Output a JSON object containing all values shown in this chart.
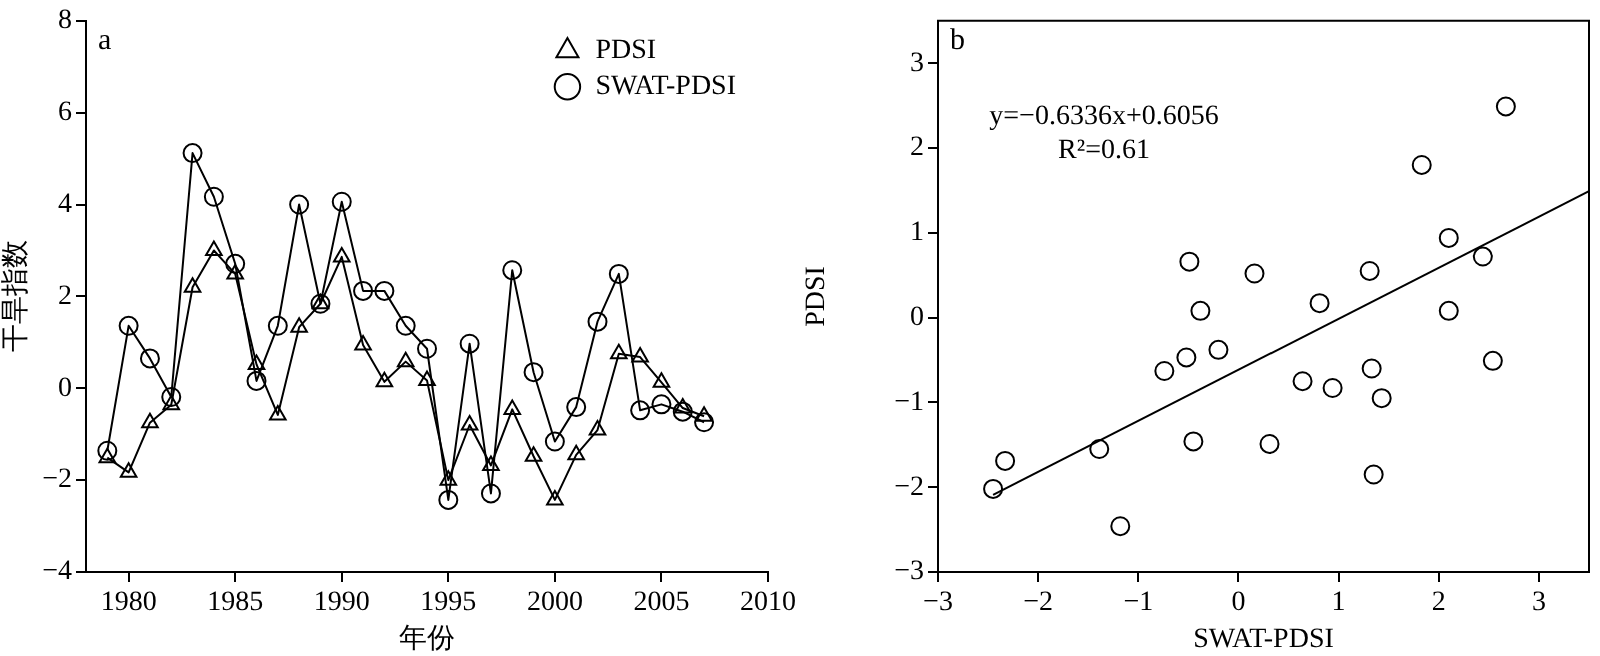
{
  "chart_data": [
    {
      "type": "line",
      "xlabel": "年份",
      "ylabel": "干旱指数",
      "annotations": [
        "a"
      ],
      "legend": "top right",
      "grid": false,
      "x": [
        1979,
        1980,
        1981,
        1982,
        1983,
        1984,
        1985,
        1986,
        1987,
        1988,
        1989,
        1990,
        1991,
        1992,
        1993,
        1994,
        1995,
        1996,
        1997,
        1998,
        1999,
        2000,
        2001,
        2002,
        2003,
        2004,
        2005,
        2006,
        2007
      ],
      "xlim": [
        1978,
        2010
      ],
      "xticks": [
        1980,
        1985,
        1990,
        1995,
        2000,
        2005,
        2010
      ],
      "ylim": [
        -4,
        8
      ],
      "yticks": [
        -4,
        -2,
        0,
        2,
        4,
        6,
        8
      ],
      "series": [
        {
          "name": "PDSI",
          "color": "#000000",
          "marker": "triangle",
          "values": [
            -1.51,
            -1.83,
            -0.75,
            -0.36,
            2.2,
            3.0,
            2.49,
            0.52,
            -0.58,
            1.33,
            1.84,
            2.86,
            0.94,
            0.14,
            0.58,
            0.17,
            -2.0,
            -0.8,
            -1.68,
            -0.46,
            -1.48,
            -2.43,
            -1.45,
            -0.91,
            0.75,
            0.68,
            0.13,
            -0.43,
            -0.61
          ]
        },
        {
          "name": "SWAT-PDSI",
          "color": "#000000",
          "marker": "circle",
          "values": [
            -1.36,
            1.36,
            0.65,
            -0.19,
            5.12,
            4.17,
            2.71,
            0.16,
            1.36,
            4.0,
            1.84,
            4.06,
            2.12,
            2.12,
            1.36,
            0.86,
            -2.43,
            0.97,
            -2.29,
            2.57,
            0.35,
            -1.16,
            -0.41,
            1.45,
            2.49,
            -0.48,
            -0.35,
            -0.51,
            -0.74
          ]
        }
      ]
    },
    {
      "type": "scatter",
      "xlabel": "SWAT-PDSI",
      "ylabel": "PDSI",
      "annotations": [
        "b",
        "y=−0.6336x+0.6056",
        "R²=0.61"
      ],
      "grid": false,
      "marker": "circle",
      "xlim": [
        -3,
        3.5
      ],
      "xticks": [
        -3,
        -2,
        -1,
        0,
        1,
        2,
        3
      ],
      "ylim": [
        -3,
        3.5
      ],
      "yticks": [
        -3,
        -2,
        -1,
        0,
        1,
        2,
        3
      ],
      "series": [
        {
          "color": "#000000",
          "x": [
            -2.45,
            -2.33,
            -1.39,
            -1.18,
            -0.74,
            -0.52,
            -0.49,
            -0.38,
            -0.45,
            -0.2,
            0.16,
            0.31,
            0.64,
            0.81,
            0.94,
            1.31,
            1.33,
            1.43,
            1.35,
            1.83,
            2.1,
            2.1,
            2.44,
            2.54,
            2.67
          ],
          "values": [
            -2.02,
            -1.69,
            -1.55,
            -2.46,
            -0.63,
            -0.47,
            0.66,
            0.08,
            -1.46,
            -0.38,
            0.52,
            -1.49,
            -0.75,
            0.17,
            -0.83,
            0.55,
            -0.6,
            -0.95,
            -1.85,
            1.8,
            0.94,
            0.08,
            0.72,
            -0.51,
            2.49
          ]
        },
        {
          "type": "line",
          "color": "#000000",
          "marker": "none",
          "x": [
            -2.45,
            3.5
          ],
          "values": [
            -2.09,
            1.49
          ]
        }
      ]
    }
  ]
}
